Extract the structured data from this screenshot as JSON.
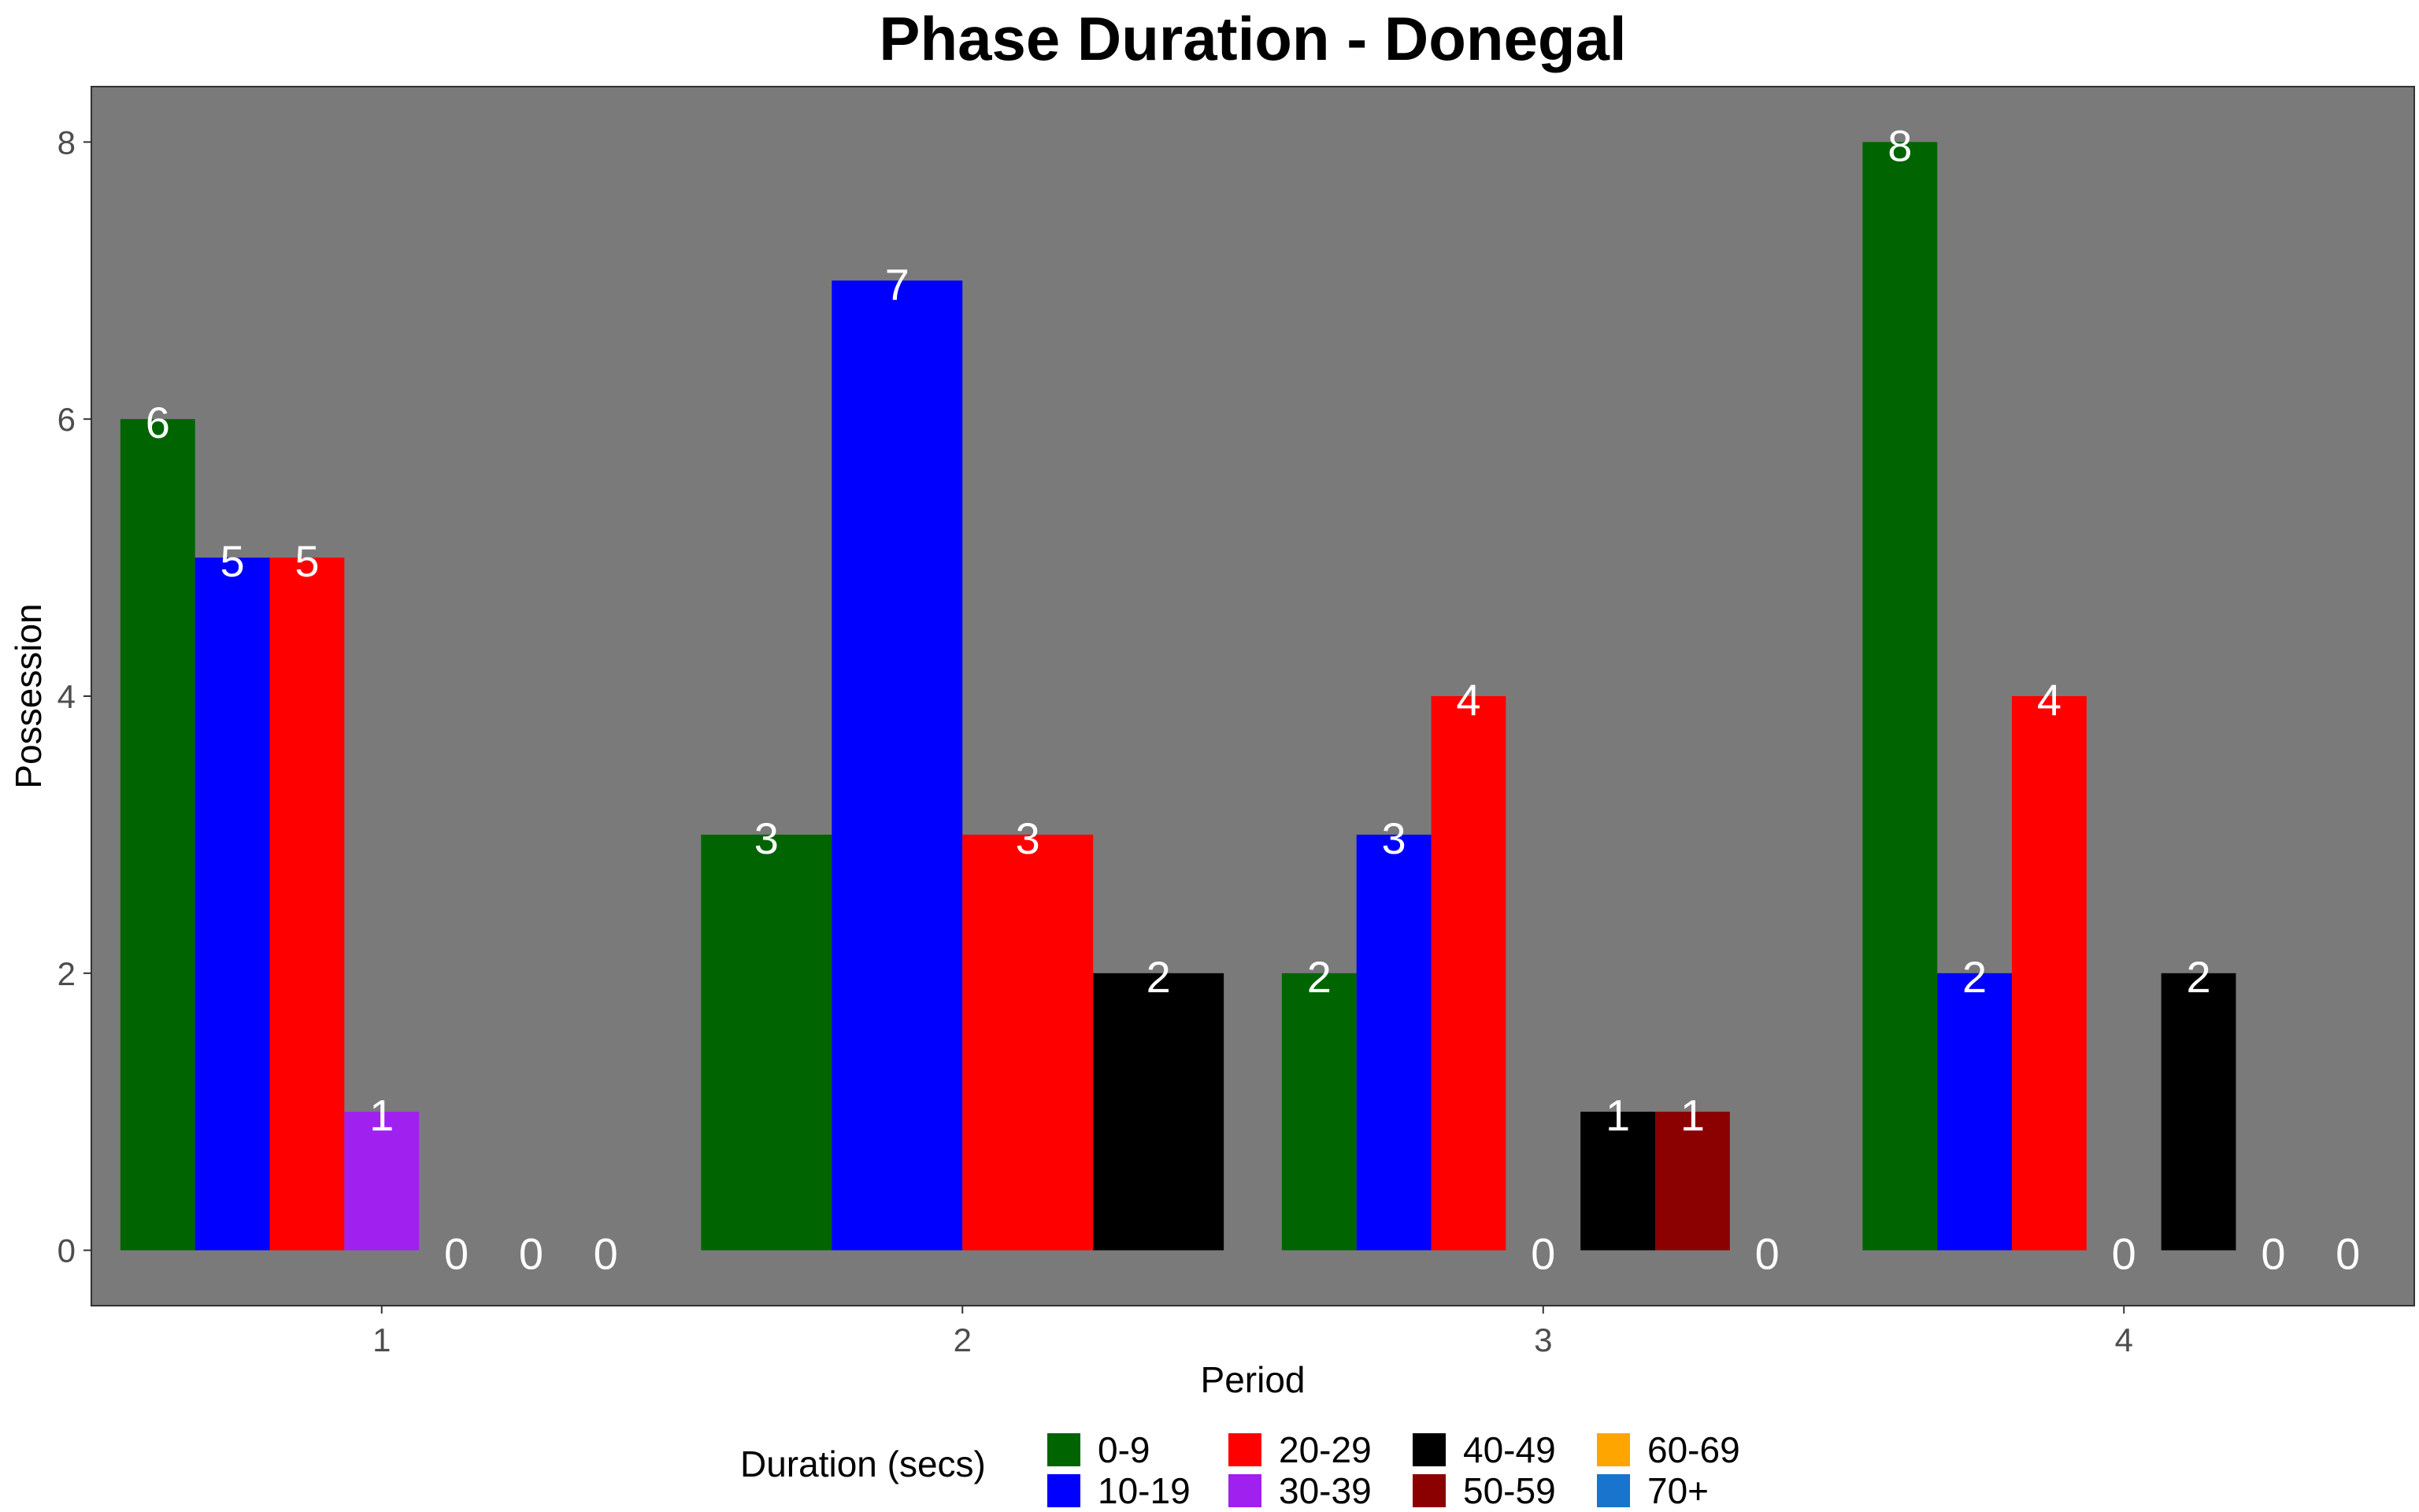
{
  "chart_data": {
    "type": "bar",
    "title": "Phase Duration - Donegal",
    "xlabel": "Period",
    "ylabel": "Possession",
    "ylim": [
      -0.4,
      8.4
    ],
    "yticks": [
      0,
      2,
      4,
      6,
      8
    ],
    "legend_title": "Duration (secs)",
    "legend_position": "bottom",
    "grid": false,
    "panel_color": "#7a7a7a",
    "categories": [
      "1",
      "2",
      "3",
      "4"
    ],
    "groups": [
      {
        "period": "1",
        "bars": [
          {
            "duration": "0-9",
            "value": 6
          },
          {
            "duration": "10-19",
            "value": 5
          },
          {
            "duration": "20-29",
            "value": 5
          },
          {
            "duration": "30-39",
            "value": 1
          },
          {
            "duration": "40-49",
            "value": 0
          },
          {
            "duration": "50-59",
            "value": 0
          },
          {
            "duration": "70+",
            "value": 0
          }
        ]
      },
      {
        "period": "2",
        "bars": [
          {
            "duration": "0-9",
            "value": 3
          },
          {
            "duration": "10-19",
            "value": 7
          },
          {
            "duration": "20-29",
            "value": 3
          },
          {
            "duration": "40-49",
            "value": 2
          }
        ]
      },
      {
        "period": "3",
        "bars": [
          {
            "duration": "0-9",
            "value": 2
          },
          {
            "duration": "10-19",
            "value": 3
          },
          {
            "duration": "20-29",
            "value": 4
          },
          {
            "duration": "30-39",
            "value": 0
          },
          {
            "duration": "40-49",
            "value": 1
          },
          {
            "duration": "50-59",
            "value": 1
          },
          {
            "duration": "70+",
            "value": 0
          }
        ]
      },
      {
        "period": "4",
        "bars": [
          {
            "duration": "0-9",
            "value": 8
          },
          {
            "duration": "10-19",
            "value": 2
          },
          {
            "duration": "20-29",
            "value": 4
          },
          {
            "duration": "30-39",
            "value": 0
          },
          {
            "duration": "40-49",
            "value": 2
          },
          {
            "duration": "50-59",
            "value": 0
          },
          {
            "duration": "70+",
            "value": 0
          }
        ]
      }
    ],
    "legend": [
      {
        "label": "0-9",
        "color": "#006400"
      },
      {
        "label": "10-19",
        "color": "#0000ff"
      },
      {
        "label": "20-29",
        "color": "#ff0000"
      },
      {
        "label": "30-39",
        "color": "#a020f0"
      },
      {
        "label": "40-49",
        "color": "#000000"
      },
      {
        "label": "50-59",
        "color": "#8b0000"
      },
      {
        "label": "60-69",
        "color": "#ffa500"
      },
      {
        "label": "70+",
        "color": "#1874cd"
      }
    ]
  }
}
